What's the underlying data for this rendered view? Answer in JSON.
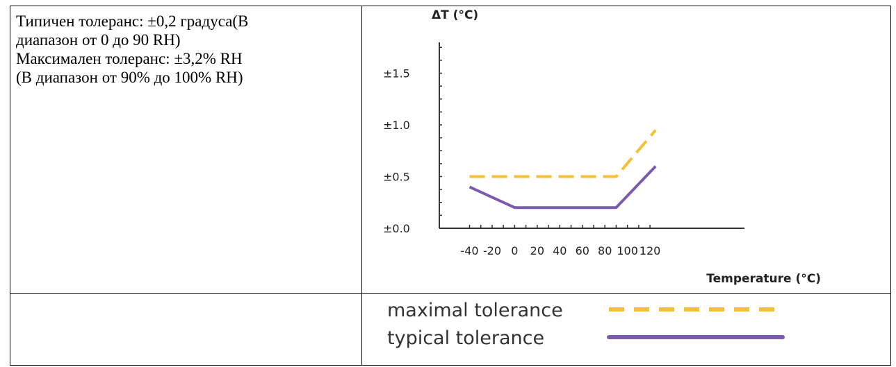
{
  "description": {
    "line1": "Типичен толеранс: ±0,2 градуса(В",
    "line2": "диапазон от 0 до 90 RH)",
    "line3": "Максимален толеранс: ±3,2% RH",
    "line4": "(В диапазон от 90% до 100% RH)"
  },
  "chart_data": {
    "type": "line",
    "ylabel": "ΔT (°C)",
    "xlabel": "Temperature (°C)",
    "xlim": [
      -40,
      125
    ],
    "ylim": [
      0,
      1.8
    ],
    "x_ticks": [
      -40,
      -20,
      0,
      20,
      40,
      60,
      80,
      100,
      120
    ],
    "x_tick_labels": [
      "-40",
      "-20",
      "0",
      "20",
      "40",
      "60",
      "80",
      "100",
      "120"
    ],
    "y_ticks": [
      0,
      0.5,
      1.0,
      1.5
    ],
    "y_tick_labels": [
      "±0.0",
      "±0.5",
      "±1.0",
      "±1.5"
    ],
    "grid": false,
    "legend_position": "bottom",
    "series": [
      {
        "name": "maximal tolerance",
        "color": "#f5c033",
        "style": "dashed",
        "points": [
          [
            -40,
            0.5
          ],
          [
            90,
            0.5
          ],
          [
            125,
            0.95
          ]
        ]
      },
      {
        "name": "typical tolerance",
        "color": "#7a5bb0",
        "style": "solid",
        "points": [
          [
            -40,
            0.4
          ],
          [
            0,
            0.2
          ],
          [
            90,
            0.2
          ],
          [
            125,
            0.6
          ]
        ]
      }
    ]
  }
}
